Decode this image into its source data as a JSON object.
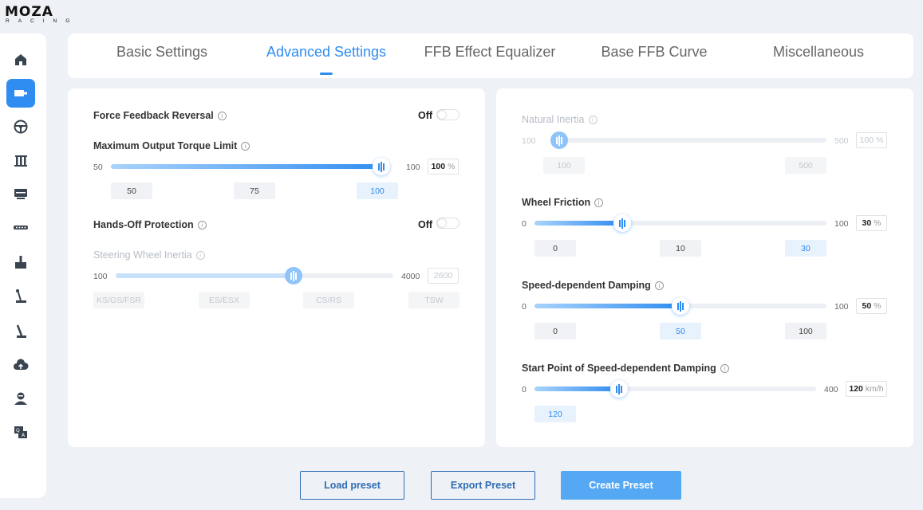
{
  "logo": {
    "main": "MOZA",
    "sub": "RACING"
  },
  "sidebar": {
    "items": [
      {
        "name": "home",
        "icon": "home-icon"
      },
      {
        "name": "base",
        "icon": "wheelbase-icon",
        "active": true
      },
      {
        "name": "steering-wheel",
        "icon": "steering-wheel-icon"
      },
      {
        "name": "pedals",
        "icon": "pedals-icon"
      },
      {
        "name": "dashboard",
        "icon": "dashboard-icon"
      },
      {
        "name": "led-bar",
        "icon": "led-bar-icon"
      },
      {
        "name": "handbrake",
        "icon": "handbrake-icon"
      },
      {
        "name": "shifter",
        "icon": "shifter-icon"
      },
      {
        "name": "sequential-shifter",
        "icon": "sequential-shifter-icon"
      },
      {
        "name": "cloud",
        "icon": "cloud-upload-icon"
      },
      {
        "name": "account",
        "icon": "user-icon"
      },
      {
        "name": "qa",
        "icon": "qa-chat-icon"
      }
    ]
  },
  "tabs": [
    {
      "label": "Basic Settings"
    },
    {
      "label": "Advanced Settings",
      "active": true
    },
    {
      "label": "FFB Effect Equalizer"
    },
    {
      "label": "Base FFB Curve"
    },
    {
      "label": "Miscellaneous"
    }
  ],
  "left": {
    "ffb_reversal": {
      "label": "Force Feedback Reversal",
      "state": "Off"
    },
    "torque": {
      "label": "Maximum Output Torque Limit",
      "min": "50",
      "max": "100",
      "value": "100",
      "unit": "%",
      "fraction": 1.0,
      "presets": [
        {
          "label": "50"
        },
        {
          "label": "75"
        },
        {
          "label": "100",
          "active": true
        }
      ]
    },
    "hands_off": {
      "label": "Hands-Off Protection",
      "state": "Off"
    },
    "inertia": {
      "label": "Steering Wheel Inertia",
      "min": "100",
      "max": "4000",
      "value": "2600",
      "fraction": 0.641,
      "presets": [
        {
          "label": "KS/GS/FSR"
        },
        {
          "label": "ES/ESX"
        },
        {
          "label": "CS/RS"
        },
        {
          "label": "TSW"
        }
      ]
    }
  },
  "right": {
    "natural_inertia": {
      "label": "Natural Inertia",
      "min": "100",
      "max": "500",
      "value": "100",
      "unit": "%",
      "fraction": 0.0,
      "presets": [
        {
          "label": "100"
        },
        {
          "label": "500"
        }
      ]
    },
    "wheel_friction": {
      "label": "Wheel Friction",
      "min": "0",
      "max": "100",
      "value": "30",
      "unit": "%",
      "fraction": 0.3,
      "presets": [
        {
          "label": "0"
        },
        {
          "label": "10"
        },
        {
          "label": "30",
          "active": true
        }
      ]
    },
    "speed_damping": {
      "label": "Speed-dependent Damping",
      "min": "0",
      "max": "100",
      "value": "50",
      "unit": "%",
      "fraction": 0.5,
      "presets": [
        {
          "label": "0"
        },
        {
          "label": "50",
          "active": true
        },
        {
          "label": "100"
        }
      ]
    },
    "damping_start": {
      "label": "Start Point of Speed-dependent Damping",
      "min": "0",
      "max": "400",
      "value": "120",
      "unit": "km/h",
      "fraction": 0.3,
      "presets": [
        {
          "label": "120",
          "active": true
        }
      ]
    }
  },
  "buttons": {
    "load": "Load preset",
    "export": "Export Preset",
    "create": "Create Preset"
  },
  "colors": {
    "accent": "#2f8cf0",
    "primary_button": "#55a8f4",
    "outline_button": "#2f6db3"
  }
}
